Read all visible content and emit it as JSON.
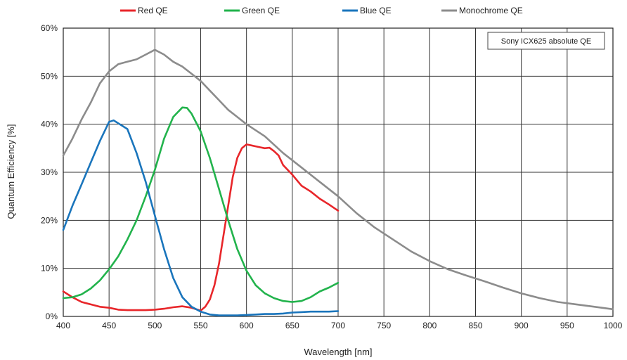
{
  "chart_data": {
    "type": "line",
    "title": "",
    "annotation": "Sony ICX625 absolute QE",
    "xlabel": "Wavelength [nm]",
    "ylabel": "Quantum Efficiency [%]",
    "xlim": [
      400,
      1000
    ],
    "ylim": [
      0,
      60
    ],
    "x_ticks": [
      400,
      450,
      500,
      550,
      600,
      650,
      700,
      750,
      800,
      850,
      900,
      950,
      1000
    ],
    "y_ticks": [
      0,
      10,
      20,
      30,
      40,
      50,
      60
    ],
    "x_tick_labels": [
      "400",
      "450",
      "500",
      "550",
      "600",
      "650",
      "700",
      "750",
      "800",
      "850",
      "900",
      "950",
      "1000"
    ],
    "y_tick_labels": [
      "0%",
      "10%",
      "20%",
      "30%",
      "40%",
      "50%",
      "60%"
    ],
    "grid": true,
    "legend_position": "top",
    "series": [
      {
        "name": "Red QE",
        "color": "#e8262a",
        "x": [
          400,
          410,
          420,
          430,
          440,
          450,
          460,
          470,
          480,
          490,
          500,
          510,
          520,
          530,
          540,
          550,
          555,
          560,
          565,
          570,
          575,
          580,
          585,
          590,
          595,
          600,
          605,
          610,
          615,
          620,
          625,
          630,
          635,
          640,
          650,
          660,
          670,
          680,
          690,
          700
        ],
        "y": [
          5.2,
          4.0,
          3.0,
          2.5,
          2.0,
          1.8,
          1.4,
          1.3,
          1.3,
          1.3,
          1.4,
          1.6,
          1.9,
          2.1,
          1.8,
          1.2,
          2.0,
          3.5,
          6.5,
          11,
          17,
          23,
          29,
          33,
          35,
          35.8,
          35.6,
          35.4,
          35.2,
          35.0,
          35.1,
          34.4,
          33.5,
          31.5,
          29.5,
          27.2,
          26.0,
          24.5,
          23.3,
          22.0
        ]
      },
      {
        "name": "Green QE",
        "color": "#22b34c",
        "x": [
          400,
          410,
          420,
          430,
          440,
          450,
          460,
          470,
          480,
          490,
          500,
          510,
          520,
          530,
          535,
          540,
          550,
          560,
          570,
          580,
          590,
          600,
          610,
          620,
          630,
          640,
          650,
          660,
          670,
          680,
          690,
          700
        ],
        "y": [
          3.8,
          4.0,
          4.6,
          5.8,
          7.5,
          9.8,
          12.5,
          16.0,
          20.0,
          25.0,
          30.5,
          37.0,
          41.5,
          43.5,
          43.4,
          42.2,
          38.5,
          33.0,
          26.5,
          20.0,
          14.0,
          9.5,
          6.5,
          4.8,
          3.8,
          3.2,
          3.0,
          3.2,
          4.0,
          5.2,
          6.0,
          7.0
        ]
      },
      {
        "name": "Blue QE",
        "color": "#1a75bc",
        "x": [
          400,
          405,
          410,
          420,
          430,
          440,
          450,
          455,
          460,
          470,
          480,
          490,
          500,
          510,
          520,
          530,
          540,
          550,
          560,
          570,
          580,
          590,
          600,
          610,
          620,
          630,
          640,
          650,
          660,
          670,
          680,
          690,
          700
        ],
        "y": [
          18.0,
          20.5,
          23.0,
          27.5,
          32.0,
          36.5,
          40.5,
          40.8,
          40.2,
          39.0,
          34.0,
          28.0,
          21.0,
          14.0,
          8.0,
          4.0,
          2.0,
          1.0,
          0.4,
          0.2,
          0.2,
          0.2,
          0.3,
          0.4,
          0.5,
          0.5,
          0.6,
          0.8,
          0.9,
          1.0,
          1.0,
          1.0,
          1.1
        ]
      },
      {
        "name": "Monochrome QE",
        "color": "#8c8c8c",
        "x": [
          400,
          410,
          420,
          430,
          440,
          450,
          460,
          470,
          480,
          490,
          500,
          510,
          520,
          530,
          540,
          550,
          560,
          570,
          580,
          590,
          600,
          620,
          640,
          660,
          680,
          700,
          720,
          740,
          760,
          780,
          800,
          820,
          840,
          860,
          880,
          900,
          920,
          940,
          960,
          980,
          1000
        ],
        "y": [
          33.5,
          37.0,
          41.0,
          44.5,
          48.5,
          51.0,
          52.5,
          53.0,
          53.5,
          54.5,
          55.5,
          54.5,
          53.0,
          52.0,
          50.5,
          49.0,
          47.0,
          45.0,
          43.0,
          41.5,
          40.0,
          37.5,
          34.0,
          31.0,
          28.0,
          25.0,
          21.5,
          18.5,
          16.0,
          13.5,
          11.5,
          9.8,
          8.5,
          7.3,
          6.0,
          4.8,
          3.8,
          3.0,
          2.5,
          2.0,
          1.5
        ]
      }
    ]
  }
}
